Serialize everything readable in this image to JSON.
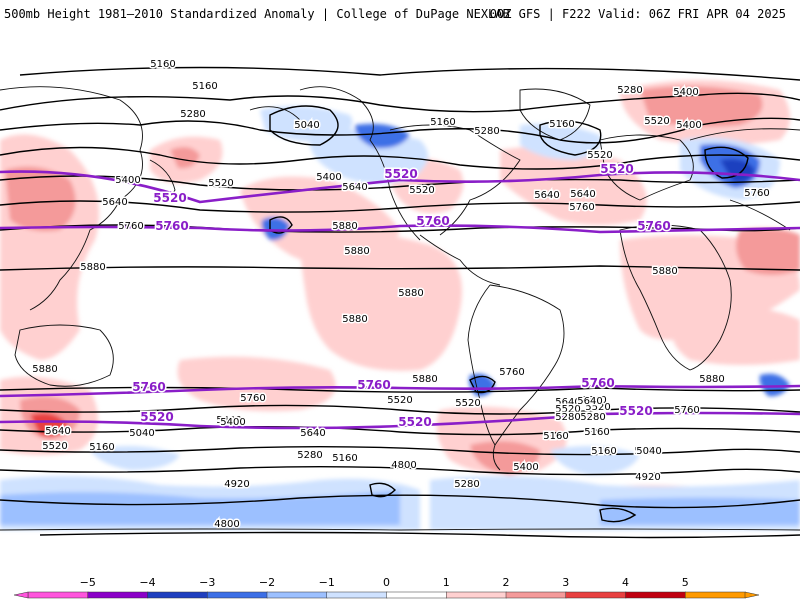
{
  "header": {
    "title_left": "500mb Height 1981–2010 Standardized Anomaly | College of DuPage NEXLAB",
    "title_right": "00Z GFS | F222 Valid: 06Z FRI APR 04 2025"
  },
  "colors": {
    "contour": "#000000",
    "highlight_contour": "#8a1ec8",
    "land_outline": "#111111",
    "background": "#ffffff"
  },
  "legend": {
    "ticks": [
      "−5",
      "−4",
      "−3",
      "−2",
      "−1",
      "0",
      "1",
      "2",
      "3",
      "4",
      "5"
    ],
    "colors": [
      "#ff55dd",
      "#8b00c8",
      "#1f3fbf",
      "#3c6fe6",
      "#9cc0ff",
      "#cfe2ff",
      "#ffffff",
      "#ffd0d0",
      "#f49a9a",
      "#e84040",
      "#c00010",
      "#ff9a00"
    ]
  },
  "contour_labels": [
    {
      "text": "5160"
    },
    {
      "text": "5160"
    },
    {
      "text": "5280"
    },
    {
      "text": "5040"
    },
    {
      "text": "5160"
    },
    {
      "text": "5280"
    },
    {
      "text": "5160"
    },
    {
      "text": "5280"
    },
    {
      "text": "5400"
    },
    {
      "text": "5520"
    },
    {
      "text": "5400"
    },
    {
      "text": "5520"
    },
    {
      "text": "5400"
    },
    {
      "text": "5400"
    },
    {
      "text": "5520"
    },
    {
      "text": "5640"
    },
    {
      "text": "5400"
    },
    {
      "text": "5640"
    },
    {
      "text": "5520"
    },
    {
      "text": "5640"
    },
    {
      "text": "5760"
    },
    {
      "text": "5640"
    },
    {
      "text": "5760"
    },
    {
      "text": "5760"
    },
    {
      "text": "5880"
    },
    {
      "text": "5880"
    },
    {
      "text": "5880"
    },
    {
      "text": "5880"
    },
    {
      "text": "5880"
    },
    {
      "text": "5880"
    },
    {
      "text": "5880"
    },
    {
      "text": "5880"
    },
    {
      "text": "5880"
    },
    {
      "text": "5760"
    },
    {
      "text": "5760"
    },
    {
      "text": "5640"
    },
    {
      "text": "5520"
    },
    {
      "text": "5400"
    },
    {
      "text": "5280"
    },
    {
      "text": "5160"
    },
    {
      "text": "5520"
    },
    {
      "text": "5400"
    },
    {
      "text": "5640"
    },
    {
      "text": "5040"
    },
    {
      "text": "5280"
    },
    {
      "text": "5160"
    },
    {
      "text": "5640"
    },
    {
      "text": "5520"
    },
    {
      "text": "5280"
    },
    {
      "text": "5160"
    },
    {
      "text": "5040"
    },
    {
      "text": "4800"
    },
    {
      "text": "5160"
    },
    {
      "text": "5640"
    },
    {
      "text": "5520"
    },
    {
      "text": "5280"
    },
    {
      "text": "5160"
    },
    {
      "text": "5400"
    },
    {
      "text": "5040"
    },
    {
      "text": "4920"
    },
    {
      "text": "4920"
    },
    {
      "text": "4800"
    },
    {
      "text": "5520"
    },
    {
      "text": "5760"
    },
    {
      "text": "5640"
    }
  ],
  "highlight_labels": [
    {
      "text": "5520"
    },
    {
      "text": "5520"
    },
    {
      "text": "5520"
    },
    {
      "text": "5760"
    },
    {
      "text": "5760"
    },
    {
      "text": "5760"
    },
    {
      "text": "5760"
    },
    {
      "text": "5760"
    },
    {
      "text": "5760"
    },
    {
      "text": "5520"
    },
    {
      "text": "5520"
    },
    {
      "text": "5520"
    }
  ]
}
